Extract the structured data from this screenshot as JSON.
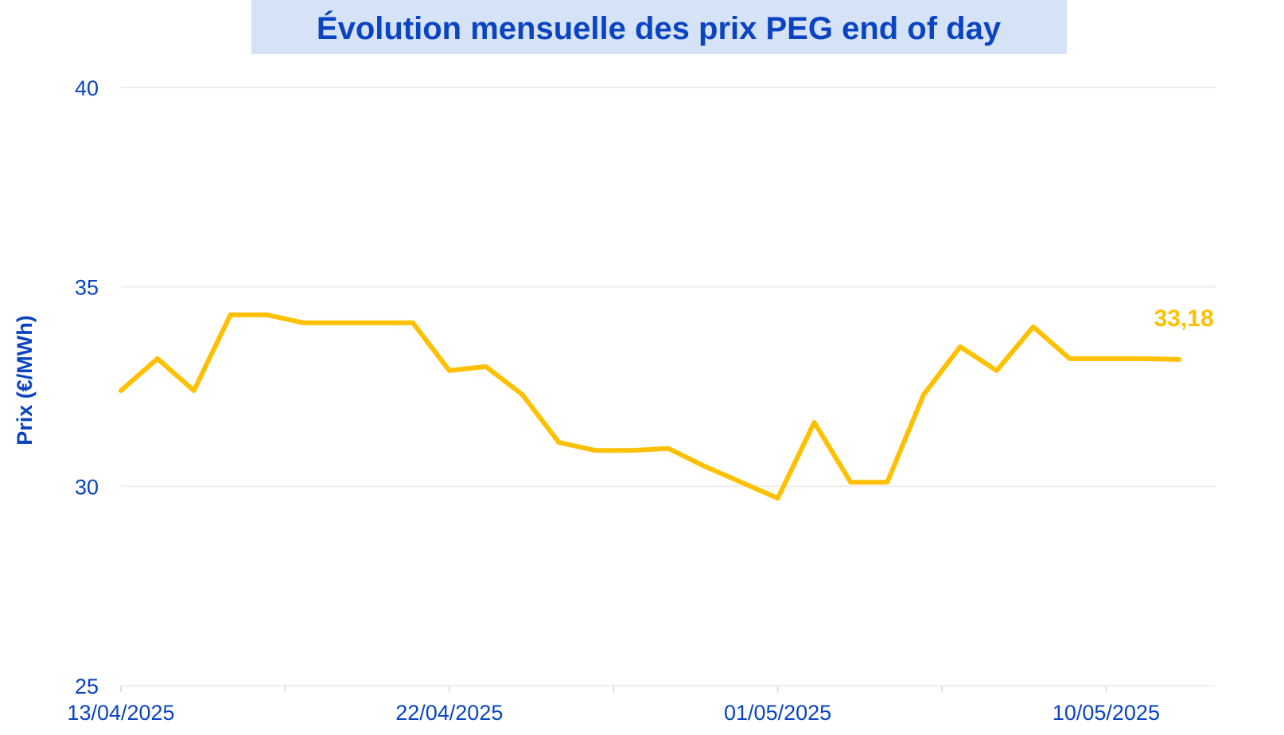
{
  "chart_data": {
    "type": "line",
    "title": "Évolution mensuelle des prix PEG end of day",
    "ylabel": "Prix (€/MWh)",
    "xlabel": "",
    "ylim": [
      25,
      40
    ],
    "yticks": [
      "40",
      "35",
      "30",
      "25"
    ],
    "xticks": [
      "13/04/2025",
      "22/04/2025",
      "01/05/2025",
      "10/05/2025"
    ],
    "xlim": [
      "13/04/2025",
      "13/05/2025"
    ],
    "grid": true,
    "legend": "none",
    "color": "#ffc000",
    "series": [
      {
        "x": [
          "13/04/2025",
          "14/04/2025",
          "15/04/2025",
          "16/04/2025",
          "17/04/2025",
          "18/04/2025",
          "19/04/2025",
          "20/04/2025",
          "21/04/2025",
          "22/04/2025",
          "23/04/2025",
          "24/04/2025",
          "25/04/2025",
          "26/04/2025",
          "27/04/2025",
          "28/04/2025",
          "29/04/2025",
          "30/04/2025",
          "01/05/2025",
          "02/05/2025",
          "03/05/2025",
          "04/05/2025",
          "05/05/2025",
          "06/05/2025",
          "07/05/2025",
          "08/05/2025",
          "09/05/2025",
          "10/05/2025",
          "11/05/2025",
          "12/05/2025"
        ],
        "values": [
          32.4,
          33.2,
          32.4,
          34.3,
          34.3,
          34.1,
          34.1,
          34.1,
          34.1,
          32.9,
          33.0,
          32.3,
          31.1,
          30.9,
          30.9,
          30.95,
          30.5,
          30.1,
          29.7,
          31.6,
          30.1,
          30.1,
          32.3,
          33.5,
          32.9,
          34.0,
          33.2,
          33.2,
          33.2,
          33.18
        ]
      }
    ],
    "last_value_label": "33,18"
  }
}
